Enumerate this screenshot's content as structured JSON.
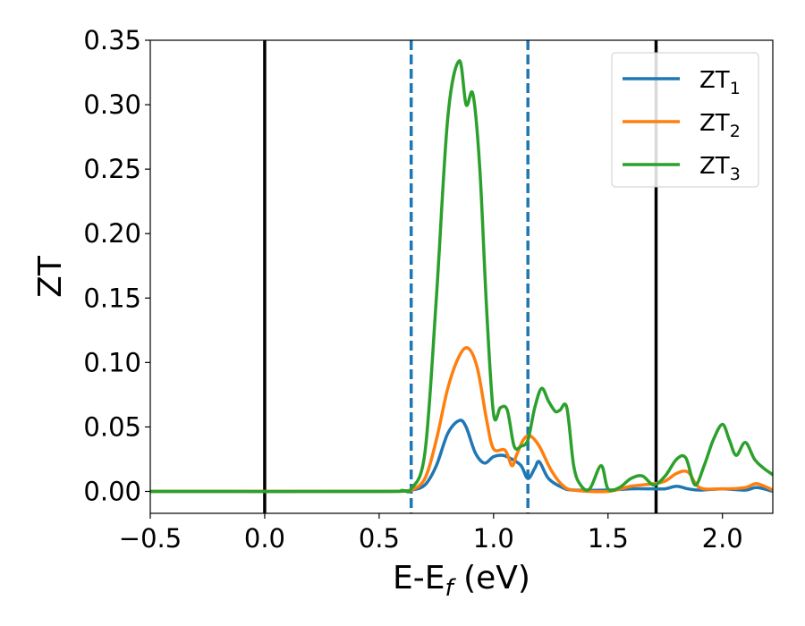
{
  "chart_data": {
    "type": "line",
    "xlabel": "E-E",
    "xlabel_sub": "f",
    "xlabel_unit": " (eV)",
    "ylabel": "ZT",
    "xlim": [
      -0.5,
      2.22
    ],
    "ylim": [
      -0.017,
      0.35
    ],
    "xticks": [
      {
        "value": -0.5,
        "label": "−0.5"
      },
      {
        "value": 0.0,
        "label": "0.0"
      },
      {
        "value": 0.5,
        "label": "0.5"
      },
      {
        "value": 1.0,
        "label": "1.0"
      },
      {
        "value": 1.5,
        "label": "1.5"
      },
      {
        "value": 2.0,
        "label": "2.0"
      }
    ],
    "yticks": [
      {
        "value": 0.0,
        "label": "0.00"
      },
      {
        "value": 0.05,
        "label": "0.05"
      },
      {
        "value": 0.1,
        "label": "0.10"
      },
      {
        "value": 0.15,
        "label": "0.15"
      },
      {
        "value": 0.2,
        "label": "0.20"
      },
      {
        "value": 0.25,
        "label": "0.25"
      },
      {
        "value": 0.3,
        "label": "0.30"
      },
      {
        "value": 0.35,
        "label": "0.35"
      }
    ],
    "grid": false,
    "legend_position": "top-right",
    "vlines": [
      {
        "x": 0.0,
        "style": "solid",
        "color": "#000000"
      },
      {
        "x": 0.64,
        "style": "dashed",
        "color": "#1f77b4"
      },
      {
        "x": 1.15,
        "style": "dashed",
        "color": "#1f77b4"
      },
      {
        "x": 1.71,
        "style": "solid",
        "color": "#000000"
      }
    ],
    "series": [
      {
        "name": "ZT",
        "name_sub": "1",
        "color": "#1f77b4",
        "x": [
          -0.5,
          0.5,
          0.6,
          0.64,
          0.7,
          0.75,
          0.8,
          0.85,
          0.88,
          0.92,
          0.96,
          1.0,
          1.04,
          1.08,
          1.12,
          1.15,
          1.18,
          1.2,
          1.24,
          1.3,
          1.35,
          1.5,
          1.6,
          1.7,
          1.75,
          1.8,
          1.85,
          1.9,
          2.0,
          2.1,
          2.15,
          2.22
        ],
        "y": [
          0.0,
          0.0,
          0.0005,
          0.001,
          0.005,
          0.02,
          0.045,
          0.055,
          0.05,
          0.03,
          0.022,
          0.027,
          0.028,
          0.025,
          0.02,
          0.01,
          0.018,
          0.023,
          0.01,
          0.003,
          0.001,
          0.001,
          0.002,
          0.002,
          0.002,
          0.004,
          0.002,
          0.001,
          0.002,
          0.001,
          0.003,
          0.0
        ]
      },
      {
        "name": "ZT",
        "name_sub": "2",
        "color": "#ff7f0e",
        "x": [
          -0.5,
          0.5,
          0.6,
          0.64,
          0.7,
          0.75,
          0.8,
          0.85,
          0.89,
          0.93,
          0.97,
          1.0,
          1.05,
          1.08,
          1.1,
          1.13,
          1.16,
          1.2,
          1.25,
          1.3,
          1.35,
          1.5,
          1.6,
          1.7,
          1.75,
          1.8,
          1.85,
          1.9,
          2.0,
          2.1,
          2.15,
          2.22
        ],
        "y": [
          0.0,
          0.0,
          0.0005,
          0.001,
          0.01,
          0.04,
          0.08,
          0.105,
          0.111,
          0.095,
          0.055,
          0.033,
          0.032,
          0.02,
          0.028,
          0.04,
          0.043,
          0.035,
          0.017,
          0.005,
          0.001,
          0.0,
          0.004,
          0.006,
          0.008,
          0.014,
          0.015,
          0.003,
          0.002,
          0.003,
          0.006,
          0.001
        ]
      },
      {
        "name": "ZT",
        "name_sub": "3",
        "color": "#2ca02c",
        "x": [
          -0.5,
          0.5,
          0.6,
          0.64,
          0.7,
          0.75,
          0.8,
          0.85,
          0.88,
          0.91,
          0.94,
          0.97,
          1.0,
          1.03,
          1.06,
          1.09,
          1.12,
          1.15,
          1.18,
          1.21,
          1.24,
          1.27,
          1.29,
          1.32,
          1.35,
          1.38,
          1.42,
          1.47,
          1.5,
          1.55,
          1.6,
          1.65,
          1.7,
          1.75,
          1.8,
          1.84,
          1.88,
          1.92,
          1.96,
          2.0,
          2.03,
          2.06,
          2.1,
          2.14,
          2.18,
          2.22
        ],
        "y": [
          0.0,
          0.0,
          0.0008,
          0.002,
          0.03,
          0.15,
          0.29,
          0.334,
          0.3,
          0.308,
          0.25,
          0.14,
          0.06,
          0.065,
          0.063,
          0.035,
          0.035,
          0.04,
          0.065,
          0.08,
          0.07,
          0.062,
          0.063,
          0.065,
          0.02,
          0.005,
          0.002,
          0.02,
          0.002,
          0.003,
          0.01,
          0.012,
          0.005,
          0.012,
          0.025,
          0.026,
          0.005,
          0.02,
          0.04,
          0.052,
          0.04,
          0.028,
          0.038,
          0.025,
          0.018,
          0.013
        ]
      }
    ]
  }
}
